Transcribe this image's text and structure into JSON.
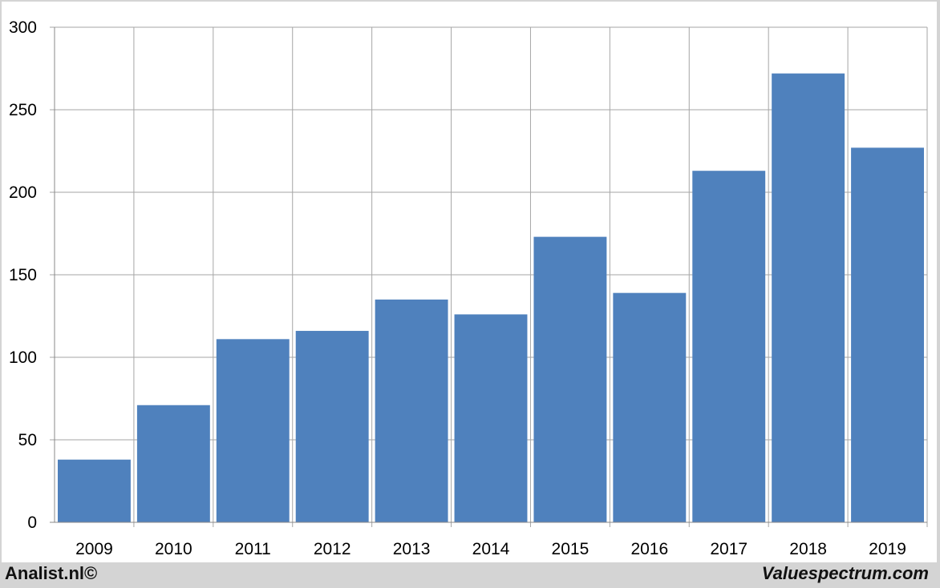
{
  "footer": {
    "left_text": "Analist.nl©",
    "right_text": "Valuespectrum.com"
  },
  "chart_data": {
    "type": "bar",
    "title": "",
    "xlabel": "",
    "ylabel": "",
    "categories": [
      "2009",
      "2010",
      "2011",
      "2012",
      "2013",
      "2014",
      "2015",
      "2016",
      "2017",
      "2018",
      "2019"
    ],
    "values": [
      38,
      71,
      111,
      116,
      135,
      126,
      173,
      139,
      213,
      272,
      227
    ],
    "ylim": [
      0,
      300
    ],
    "yticks": [
      0,
      50,
      100,
      150,
      200,
      250,
      300
    ],
    "grid": true,
    "legend": "none",
    "colors": {
      "bar": "#4f81bd",
      "plot_background": "#ffffff",
      "grid": "#a6a6a6",
      "frame": "#d4d4d4"
    }
  }
}
